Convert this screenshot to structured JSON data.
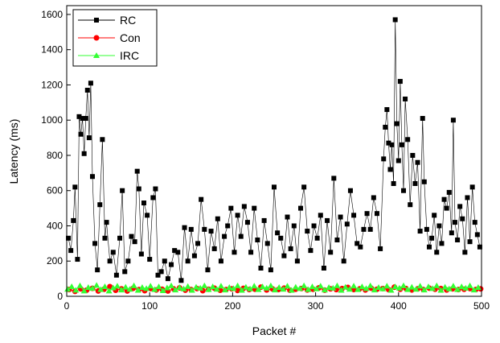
{
  "chart_data": {
    "type": "line",
    "xlabel": "Packet #",
    "ylabel": "Latency (ms)",
    "xlim": [
      0,
      500
    ],
    "ylim": [
      0,
      1650
    ],
    "x_ticks": [
      0,
      100,
      200,
      300,
      400,
      500
    ],
    "y_ticks": [
      0,
      200,
      400,
      600,
      800,
      1000,
      1200,
      1400,
      1600
    ],
    "legend_position": "top-left",
    "grid": false,
    "series": [
      {
        "name": "RC",
        "color": "#000000",
        "marker": "square",
        "points": [
          [
            2,
            330
          ],
          [
            5,
            260
          ],
          [
            8,
            430
          ],
          [
            10,
            620
          ],
          [
            13,
            210
          ],
          [
            15,
            1020
          ],
          [
            17,
            920
          ],
          [
            19,
            1010
          ],
          [
            21,
            810
          ],
          [
            23,
            1010
          ],
          [
            25,
            1170
          ],
          [
            27,
            900
          ],
          [
            29,
            1210
          ],
          [
            31,
            680
          ],
          [
            34,
            300
          ],
          [
            37,
            150
          ],
          [
            40,
            520
          ],
          [
            43,
            890
          ],
          [
            46,
            330
          ],
          [
            48,
            420
          ],
          [
            52,
            200
          ],
          [
            56,
            250
          ],
          [
            60,
            120
          ],
          [
            64,
            330
          ],
          [
            67,
            600
          ],
          [
            70,
            140
          ],
          [
            74,
            200
          ],
          [
            78,
            340
          ],
          [
            82,
            310
          ],
          [
            85,
            710
          ],
          [
            87,
            610
          ],
          [
            90,
            240
          ],
          [
            93,
            530
          ],
          [
            97,
            460
          ],
          [
            100,
            210
          ],
          [
            104,
            560
          ],
          [
            107,
            610
          ],
          [
            110,
            120
          ],
          [
            114,
            140
          ],
          [
            118,
            200
          ],
          [
            122,
            100
          ],
          [
            126,
            180
          ],
          [
            130,
            260
          ],
          [
            134,
            250
          ],
          [
            138,
            90
          ],
          [
            142,
            390
          ],
          [
            146,
            200
          ],
          [
            150,
            380
          ],
          [
            154,
            230
          ],
          [
            158,
            300
          ],
          [
            162,
            550
          ],
          [
            166,
            380
          ],
          [
            170,
            150
          ],
          [
            174,
            370
          ],
          [
            178,
            270
          ],
          [
            182,
            440
          ],
          [
            186,
            200
          ],
          [
            190,
            340
          ],
          [
            194,
            400
          ],
          [
            198,
            500
          ],
          [
            202,
            250
          ],
          [
            206,
            460
          ],
          [
            210,
            340
          ],
          [
            214,
            510
          ],
          [
            218,
            420
          ],
          [
            222,
            250
          ],
          [
            226,
            500
          ],
          [
            230,
            320
          ],
          [
            234,
            160
          ],
          [
            238,
            430
          ],
          [
            242,
            300
          ],
          [
            246,
            150
          ],
          [
            250,
            620
          ],
          [
            254,
            360
          ],
          [
            258,
            330
          ],
          [
            262,
            230
          ],
          [
            266,
            450
          ],
          [
            270,
            270
          ],
          [
            274,
            400
          ],
          [
            278,
            200
          ],
          [
            282,
            500
          ],
          [
            286,
            620
          ],
          [
            290,
            370
          ],
          [
            294,
            260
          ],
          [
            298,
            400
          ],
          [
            302,
            330
          ],
          [
            306,
            460
          ],
          [
            310,
            160
          ],
          [
            314,
            430
          ],
          [
            318,
            250
          ],
          [
            322,
            670
          ],
          [
            326,
            320
          ],
          [
            330,
            450
          ],
          [
            334,
            200
          ],
          [
            338,
            410
          ],
          [
            342,
            600
          ],
          [
            346,
            460
          ],
          [
            350,
            300
          ],
          [
            354,
            280
          ],
          [
            358,
            380
          ],
          [
            362,
            470
          ],
          [
            366,
            380
          ],
          [
            370,
            560
          ],
          [
            374,
            470
          ],
          [
            378,
            270
          ],
          [
            382,
            780
          ],
          [
            384,
            960
          ],
          [
            386,
            1060
          ],
          [
            388,
            870
          ],
          [
            390,
            720
          ],
          [
            392,
            860
          ],
          [
            394,
            640
          ],
          [
            396,
            1570
          ],
          [
            398,
            980
          ],
          [
            400,
            770
          ],
          [
            402,
            1220
          ],
          [
            404,
            860
          ],
          [
            406,
            600
          ],
          [
            408,
            1120
          ],
          [
            411,
            890
          ],
          [
            414,
            520
          ],
          [
            417,
            800
          ],
          [
            420,
            640
          ],
          [
            423,
            760
          ],
          [
            426,
            370
          ],
          [
            429,
            1010
          ],
          [
            431,
            650
          ],
          [
            434,
            380
          ],
          [
            437,
            280
          ],
          [
            440,
            330
          ],
          [
            443,
            460
          ],
          [
            446,
            250
          ],
          [
            449,
            400
          ],
          [
            452,
            300
          ],
          [
            455,
            550
          ],
          [
            458,
            500
          ],
          [
            461,
            590
          ],
          [
            464,
            360
          ],
          [
            466,
            1000
          ],
          [
            468,
            420
          ],
          [
            471,
            320
          ],
          [
            474,
            510
          ],
          [
            477,
            440
          ],
          [
            480,
            250
          ],
          [
            483,
            560
          ],
          [
            486,
            310
          ],
          [
            489,
            620
          ],
          [
            492,
            420
          ],
          [
            495,
            350
          ],
          [
            498,
            280
          ]
        ]
      },
      {
        "name": "Con",
        "color": "#ff0000",
        "marker": "circle",
        "points": [
          [
            3,
            38
          ],
          [
            10,
            28
          ],
          [
            17,
            42
          ],
          [
            24,
            35
          ],
          [
            31,
            45
          ],
          [
            38,
            30
          ],
          [
            45,
            40
          ],
          [
            52,
            55
          ],
          [
            59,
            34
          ],
          [
            66,
            42
          ],
          [
            73,
            30
          ],
          [
            80,
            45
          ],
          [
            87,
            38
          ],
          [
            94,
            32
          ],
          [
            101,
            44
          ],
          [
            108,
            36
          ],
          [
            115,
            40
          ],
          [
            122,
            30
          ],
          [
            129,
            42
          ],
          [
            136,
            48
          ],
          [
            143,
            35
          ],
          [
            150,
            38
          ],
          [
            157,
            44
          ],
          [
            164,
            32
          ],
          [
            171,
            40
          ],
          [
            178,
            46
          ],
          [
            185,
            34
          ],
          [
            192,
            38
          ],
          [
            199,
            42
          ],
          [
            206,
            33
          ],
          [
            213,
            45
          ],
          [
            220,
            38
          ],
          [
            227,
            40
          ],
          [
            234,
            52
          ],
          [
            241,
            36
          ],
          [
            248,
            42
          ],
          [
            255,
            38
          ],
          [
            262,
            46
          ],
          [
            269,
            34
          ],
          [
            276,
            40
          ],
          [
            283,
            44
          ],
          [
            290,
            36
          ],
          [
            297,
            40
          ],
          [
            304,
            48
          ],
          [
            311,
            35
          ],
          [
            318,
            42
          ],
          [
            325,
            38
          ],
          [
            332,
            44
          ],
          [
            339,
            50
          ],
          [
            346,
            38
          ],
          [
            353,
            42
          ],
          [
            360,
            36
          ],
          [
            367,
            46
          ],
          [
            374,
            40
          ],
          [
            381,
            44
          ],
          [
            388,
            38
          ],
          [
            395,
            52
          ],
          [
            402,
            40
          ],
          [
            409,
            44
          ],
          [
            416,
            36
          ],
          [
            423,
            42
          ],
          [
            430,
            38
          ],
          [
            437,
            46
          ],
          [
            444,
            40
          ],
          [
            451,
            44
          ],
          [
            458,
            36
          ],
          [
            465,
            42
          ],
          [
            472,
            38
          ],
          [
            479,
            40
          ],
          [
            486,
            44
          ],
          [
            493,
            38
          ],
          [
            499,
            42
          ]
        ]
      },
      {
        "name": "IRC",
        "color": "#33ff33",
        "marker": "triangle",
        "points": [
          [
            1,
            40
          ],
          [
            6,
            55
          ],
          [
            11,
            35
          ],
          [
            16,
            60
          ],
          [
            21,
            30
          ],
          [
            26,
            50
          ],
          [
            31,
            45
          ],
          [
            36,
            62
          ],
          [
            41,
            38
          ],
          [
            46,
            55
          ],
          [
            51,
            30
          ],
          [
            56,
            48
          ],
          [
            61,
            58
          ],
          [
            66,
            36
          ],
          [
            71,
            52
          ],
          [
            76,
            40
          ],
          [
            81,
            60
          ],
          [
            86,
            34
          ],
          [
            91,
            50
          ],
          [
            96,
            44
          ],
          [
            101,
            58
          ],
          [
            106,
            38
          ],
          [
            111,
            54
          ],
          [
            116,
            32
          ],
          [
            121,
            48
          ],
          [
            126,
            60
          ],
          [
            131,
            36
          ],
          [
            136,
            50
          ],
          [
            141,
            42
          ],
          [
            146,
            56
          ],
          [
            151,
            34
          ],
          [
            156,
            52
          ],
          [
            161,
            46
          ],
          [
            166,
            60
          ],
          [
            171,
            38
          ],
          [
            176,
            54
          ],
          [
            181,
            40
          ],
          [
            186,
            58
          ],
          [
            191,
            36
          ],
          [
            196,
            50
          ],
          [
            201,
            44
          ],
          [
            206,
            60
          ],
          [
            211,
            34
          ],
          [
            216,
            52
          ],
          [
            221,
            42
          ],
          [
            226,
            58
          ],
          [
            231,
            38
          ],
          [
            236,
            54
          ],
          [
            241,
            46
          ],
          [
            246,
            60
          ],
          [
            251,
            36
          ],
          [
            256,
            50
          ],
          [
            261,
            40
          ],
          [
            266,
            58
          ],
          [
            271,
            34
          ],
          [
            276,
            52
          ],
          [
            281,
            44
          ],
          [
            286,
            60
          ],
          [
            291,
            38
          ],
          [
            296,
            54
          ],
          [
            301,
            42
          ],
          [
            306,
            58
          ],
          [
            311,
            36
          ],
          [
            316,
            50
          ],
          [
            321,
            46
          ],
          [
            326,
            60
          ],
          [
            331,
            34
          ],
          [
            336,
            52
          ],
          [
            341,
            40
          ],
          [
            346,
            58
          ],
          [
            351,
            38
          ],
          [
            356,
            54
          ],
          [
            361,
            44
          ],
          [
            366,
            60
          ],
          [
            371,
            36
          ],
          [
            376,
            50
          ],
          [
            381,
            42
          ],
          [
            386,
            58
          ],
          [
            391,
            34
          ],
          [
            396,
            54
          ],
          [
            401,
            46
          ],
          [
            406,
            60
          ],
          [
            411,
            38
          ],
          [
            416,
            52
          ],
          [
            421,
            40
          ],
          [
            426,
            58
          ],
          [
            431,
            36
          ],
          [
            436,
            54
          ],
          [
            441,
            44
          ],
          [
            446,
            60
          ],
          [
            451,
            34
          ],
          [
            456,
            52
          ],
          [
            461,
            42
          ],
          [
            466,
            58
          ],
          [
            471,
            38
          ],
          [
            476,
            54
          ],
          [
            481,
            46
          ],
          [
            486,
            60
          ],
          [
            491,
            36
          ],
          [
            496,
            50
          ]
        ]
      }
    ]
  }
}
